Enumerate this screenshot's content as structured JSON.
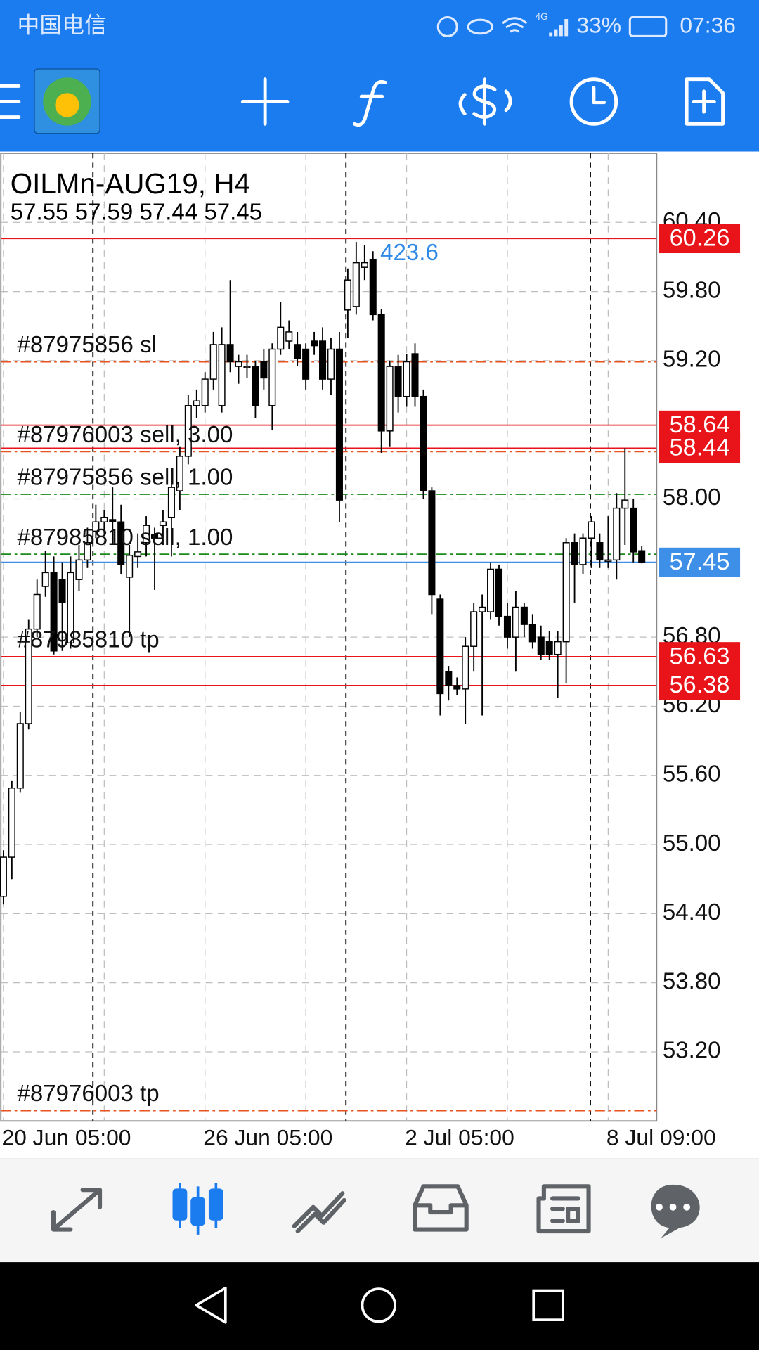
{
  "status_bar": {
    "carrier": "中国电信",
    "network": "4G",
    "battery": "33%",
    "time": "07:36"
  },
  "chart_data": {
    "type": "candlestick",
    "title": "OILMn-AUG19, H4",
    "subtitle": "57.55 57.59 57.44 57.45",
    "annotation": "423.6",
    "categories": [
      "20 Jun 05:00",
      null,
      null,
      null,
      null,
      null,
      null,
      null,
      null,
      null,
      null,
      null,
      null,
      null,
      null,
      null,
      null,
      null,
      null,
      null,
      null,
      null,
      null,
      null,
      "26 Jun 05:00",
      null,
      null,
      null,
      null,
      null,
      null,
      null,
      null,
      null,
      null,
      null,
      null,
      null,
      null,
      null,
      null,
      null,
      null,
      null,
      null,
      null,
      null,
      null,
      "2 Jul 05:00",
      null,
      null,
      null,
      null,
      null,
      null,
      null,
      null,
      null,
      null,
      null,
      null,
      null,
      null,
      null,
      null,
      null,
      null,
      null,
      null,
      null,
      null,
      null,
      "8 Jul 09:00",
      null,
      null,
      null,
      null
    ],
    "open": [
      54.55,
      54.89,
      55.49,
      56.05,
      56.87,
      57.24,
      57.36,
      57.3,
      56.75,
      57.3,
      57.47,
      57.72,
      57.8,
      57.82,
      57.8,
      57.32,
      57.5,
      57.62,
      57.69,
      57.77,
      57.84,
      58.07,
      58.37,
      58.81,
      58.81,
      59.04,
      58.81,
      59.34,
      59.15,
      59.15,
      59.15,
      59.19,
      58.81,
      59.3,
      59.37,
      59.34,
      59.3,
      59.37,
      59.37,
      59.04,
      59.3,
      59.64,
      59.67,
      60.01,
      60.08,
      59.6,
      58.59,
      59.15,
      58.89,
      59.26,
      58.89,
      58.07,
      57.13,
      56.5,
      56.38,
      56.35,
      56.72,
      57.02,
      57.02,
      57.39,
      56.98,
      56.8,
      57.06,
      56.91,
      56.8,
      56.76,
      56.65,
      56.76,
      57.62,
      57.43,
      57.66,
      57.62,
      57.47,
      57.47,
      57.92,
      57.92,
      57.55
    ],
    "high": [
      54.95,
      55.55,
      56.15,
      56.95,
      57.3,
      57.55,
      57.5,
      57.45,
      57.5,
      57.6,
      57.75,
      57.95,
      57.9,
      58.1,
      57.95,
      57.6,
      57.7,
      57.85,
      57.75,
      57.9,
      58.2,
      58.45,
      58.9,
      58.95,
      59.1,
      59.45,
      59.49,
      59.9,
      59.25,
      59.25,
      59.2,
      59.3,
      59.35,
      59.71,
      59.55,
      59.45,
      59.35,
      59.45,
      59.49,
      59.4,
      59.45,
      60.0,
      60.23,
      60.2,
      60.15,
      59.65,
      59.2,
      59.25,
      59.26,
      59.35,
      58.95,
      58.1,
      57.17,
      56.55,
      56.45,
      56.8,
      57.1,
      57.17,
      57.45,
      57.43,
      57.1,
      57.2,
      57.1,
      57.0,
      56.9,
      56.85,
      56.85,
      57.66,
      57.7,
      57.7,
      57.85,
      57.7,
      57.85,
      58.05,
      58.44,
      58.0,
      57.59
    ],
    "low": [
      54.48,
      54.7,
      55.45,
      56.0,
      56.8,
      57.15,
      56.65,
      56.68,
      56.7,
      57.2,
      57.4,
      57.66,
      57.7,
      57.6,
      57.35,
      56.8,
      57.4,
      57.5,
      57.21,
      57.6,
      57.5,
      57.9,
      58.3,
      58.7,
      58.75,
      58.95,
      58.75,
      59.1,
      59.0,
      59.05,
      58.7,
      58.95,
      58.6,
      59.25,
      59.3,
      59.15,
      58.95,
      59.25,
      58.95,
      58.9,
      57.8,
      59.4,
      59.6,
      59.9,
      59.55,
      58.4,
      58.45,
      58.75,
      58.8,
      58.8,
      58.0,
      57.0,
      56.12,
      56.25,
      56.3,
      56.05,
      56.5,
      56.12,
      56.95,
      56.9,
      56.7,
      56.5,
      56.8,
      56.7,
      56.6,
      56.6,
      56.27,
      56.4,
      57.1,
      57.35,
      57.4,
      57.4,
      57.4,
      57.3,
      57.6,
      57.45,
      57.44
    ],
    "close": [
      54.89,
      55.49,
      56.05,
      56.87,
      57.17,
      57.36,
      56.68,
      57.1,
      57.36,
      57.47,
      57.62,
      57.8,
      57.84,
      57.8,
      57.43,
      57.51,
      57.54,
      57.77,
      57.66,
      57.8,
      58.1,
      58.37,
      58.81,
      58.85,
      59.04,
      59.34,
      59.34,
      59.19,
      59.19,
      59.15,
      58.81,
      59.05,
      59.3,
      59.49,
      59.45,
      59.22,
      59.04,
      59.33,
      59.04,
      59.3,
      57.99,
      59.9,
      60.05,
      60.05,
      59.6,
      58.59,
      59.15,
      58.89,
      59.19,
      58.89,
      58.07,
      57.17,
      56.31,
      56.38,
      56.35,
      56.72,
      57.02,
      57.06,
      57.39,
      56.98,
      56.8,
      57.06,
      56.91,
      56.76,
      56.65,
      56.65,
      56.76,
      57.62,
      57.43,
      57.66,
      57.8,
      57.47,
      57.47,
      57.92,
      57.99,
      57.54,
      57.45
    ],
    "bull_color": "#ffffff",
    "bear_color": "#000000",
    "ylim": [
      52.6,
      61.0
    ],
    "yticks": [
      {
        "value": 60.4,
        "label": "60.40"
      },
      {
        "value": 59.8,
        "label": "59.80"
      },
      {
        "value": 59.2,
        "label": "59.20"
      },
      {
        "value": 58.0,
        "label": "58.00"
      },
      {
        "value": 56.8,
        "label": "56.80"
      },
      {
        "value": 56.2,
        "label": "56.20"
      },
      {
        "value": 55.6,
        "label": "55.60"
      },
      {
        "value": 55.0,
        "label": "55.00"
      },
      {
        "value": 54.4,
        "label": "54.40"
      },
      {
        "value": 53.8,
        "label": "53.80"
      },
      {
        "value": 53.2,
        "label": "53.20"
      }
    ],
    "grid": true,
    "order_lines": [
      {
        "label": "#87975856 sl",
        "value": 59.19,
        "color": "#e8531f"
      },
      {
        "label": "#87976003 sell, 3.00",
        "value": 58.41,
        "color": "#e8531f"
      },
      {
        "label": "#87975856 sell, 1.00",
        "value": 58.04,
        "color": "#1a8a1a"
      },
      {
        "label": "#87985810 sell, 1.00",
        "value": 57.52,
        "color": "#1a8a1a"
      },
      {
        "label": "#87985810 tp",
        "value": 56.63,
        "color": "#e8531f"
      },
      {
        "label": "#87976003 tp",
        "value": 52.69,
        "color": "#e8531f"
      }
    ],
    "price_lines": [
      {
        "value": 60.26,
        "color": "#e8141a"
      },
      {
        "value": 58.64,
        "color": "#e8141a"
      },
      {
        "value": 58.44,
        "color": "#e8141a"
      },
      {
        "value": 56.63,
        "color": "#e8141a"
      },
      {
        "value": 56.38,
        "color": "#e8141a"
      },
      {
        "value": 57.45,
        "color": "#3d8fe8"
      }
    ]
  }
}
